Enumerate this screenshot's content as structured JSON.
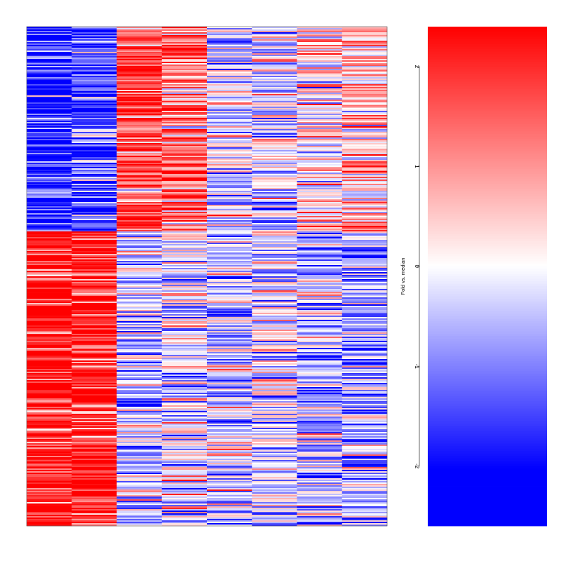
{
  "chart_data": {
    "type": "heatmap",
    "title": "",
    "xlabel": "",
    "ylabel": "",
    "n_columns": 8,
    "column_labels": [],
    "color_scale": {
      "label": "Fold vs. median",
      "min": -2.6,
      "max": 2.4,
      "low_color": "#0000ff",
      "mid_color": "#ffffff",
      "high_color": "#ff0000",
      "mid_value": 0,
      "saturate_below": -2.03,
      "ticks": [
        {
          "value": 2,
          "label": "2"
        },
        {
          "value": 1,
          "label": "1"
        },
        {
          "value": 0,
          "label": "0"
        },
        {
          "value": -1,
          "label": "-1"
        },
        {
          "value": -2,
          "label": "-2"
        }
      ]
    },
    "row_block_pattern": {
      "description_note": "",
      "blocks": [
        {
          "rows_fraction": 0.41,
          "column_means": [
            -1.8,
            -1.5,
            1.6,
            1.2,
            -0.3,
            -0.2,
            0.4,
            0.6
          ]
        },
        {
          "rows_fraction": 0.59,
          "column_means": [
            2.2,
            2.1,
            -0.4,
            -0.2,
            -0.5,
            -0.3,
            -0.6,
            -0.8
          ]
        }
      ]
    }
  }
}
